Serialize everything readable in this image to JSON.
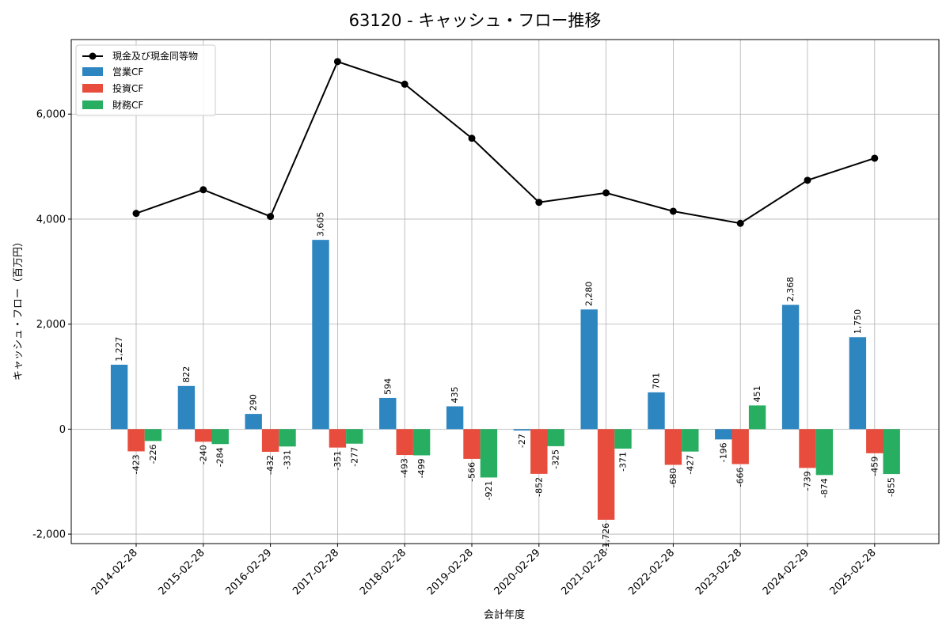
{
  "chart_data": {
    "type": "bar",
    "title": "63120 - キャッシュ・フロー推移",
    "xlabel": "会計年度",
    "ylabel": "キャッシュ・フロー（百万円）",
    "categories": [
      "2014-02-28",
      "2015-02-28",
      "2016-02-29",
      "2017-02-28",
      "2018-02-28",
      "2019-02-28",
      "2020-02-29",
      "2021-02-28",
      "2022-02-28",
      "2023-02-28",
      "2024-02-29",
      "2025-02-28"
    ],
    "series": [
      {
        "name": "営業CF",
        "kind": "bar",
        "color": "#2e86c1",
        "values": [
          1227,
          822,
          290,
          3605,
          594,
          435,
          -27,
          2280,
          701,
          -196,
          2368,
          1750
        ]
      },
      {
        "name": "投資CF",
        "kind": "bar",
        "color": "#e74c3c",
        "values": [
          -423,
          -240,
          -432,
          -351,
          -493,
          -566,
          -852,
          -1726,
          -680,
          -666,
          -739,
          -459
        ]
      },
      {
        "name": "財務CF",
        "kind": "bar",
        "color": "#27ae60",
        "values": [
          -226,
          -284,
          -331,
          -277,
          -499,
          -921,
          -325,
          -371,
          -427,
          451,
          -874,
          -855
        ]
      },
      {
        "name": "現金及び現金同等物",
        "kind": "line",
        "color": "#000000",
        "values": [
          4110,
          4560,
          4050,
          7000,
          6570,
          5540,
          4320,
          4500,
          4150,
          3920,
          4740,
          5160
        ]
      }
    ],
    "data_labels": {
      "営業CF": [
        "1,227",
        "822",
        "290",
        "3,605",
        "594",
        "435",
        "-27",
        "2,280",
        "701",
        "-196",
        "2,368",
        "1,750"
      ],
      "投資CF": [
        "-423",
        "-240",
        "-432",
        "-351",
        "-493",
        "-566",
        "-852",
        "-1,726",
        "-680",
        "-666",
        "-739",
        "-459"
      ],
      "財務CF": [
        "-226",
        "-284",
        "-331",
        "-277",
        "-499",
        "-921",
        "-325",
        "-371",
        "-427",
        "451",
        "-874",
        "-855"
      ]
    },
    "y_ticks": [
      -2000,
      0,
      2000,
      4000,
      6000
    ],
    "y_tick_labels": [
      "-2,000",
      "0",
      "2,000",
      "4,000",
      "6,000"
    ],
    "ylim": [
      -2180,
      7420
    ],
    "grid": true,
    "legend_position": "top-left"
  }
}
